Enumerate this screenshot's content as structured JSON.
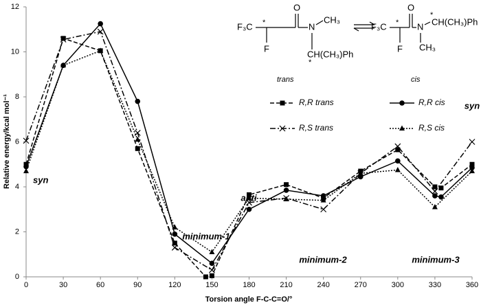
{
  "chart_data": {
    "type": "line",
    "x_label": "Torsion angle F-C-C=O/°",
    "y_label": "Relative energy/kcal mol⁻¹",
    "xlim": [
      0,
      360
    ],
    "xticks": [
      0,
      30,
      60,
      90,
      120,
      150,
      180,
      210,
      240,
      270,
      300,
      330,
      360
    ],
    "ylim": [
      0,
      12
    ],
    "yticks": [
      0,
      2,
      4,
      6,
      8,
      10,
      12
    ],
    "grid": false,
    "legend_position": "upper right",
    "series": [
      {
        "name": "R,R trans",
        "color": "#000000",
        "dash": "dashed",
        "marker": "square",
        "x": [
          0,
          30,
          60,
          90,
          120,
          145,
          150,
          180,
          210,
          240,
          270,
          300,
          330,
          335,
          360
        ],
        "values": [
          5.0,
          10.6,
          10.05,
          5.7,
          1.5,
          0.0,
          0.05,
          3.65,
          4.1,
          3.5,
          4.7,
          5.65,
          4.0,
          3.95,
          5.0
        ]
      },
      {
        "name": "R,R cis",
        "color": "#000000",
        "dash": "solid",
        "marker": "circle",
        "x": [
          0,
          30,
          60,
          90,
          120,
          150,
          180,
          210,
          240,
          270,
          300,
          330,
          335,
          360
        ],
        "values": [
          4.9,
          9.4,
          11.25,
          7.8,
          1.9,
          0.6,
          3.0,
          3.85,
          3.6,
          4.45,
          5.15,
          3.6,
          3.55,
          4.85
        ]
      },
      {
        "name": "R,S trans",
        "color": "#000000",
        "dash": "dashdot",
        "marker": "cross",
        "x": [
          0,
          30,
          60,
          90,
          120,
          150,
          180,
          210,
          240,
          270,
          300,
          330,
          360
        ],
        "values": [
          6.05,
          10.55,
          10.9,
          6.4,
          1.3,
          0.3,
          3.3,
          3.5,
          3.0,
          4.6,
          5.8,
          3.8,
          6.0
        ]
      },
      {
        "name": "R,S cis",
        "color": "#000000",
        "dash": "dotted",
        "marker": "triangle",
        "x": [
          0,
          30,
          60,
          90,
          120,
          150,
          180,
          210,
          240,
          270,
          300,
          330,
          360
        ],
        "values": [
          4.7,
          9.4,
          10.05,
          6.1,
          2.2,
          1.1,
          3.5,
          3.45,
          3.4,
          4.6,
          4.75,
          3.1,
          4.7
        ]
      }
    ],
    "annotations": [
      "syn",
      "minimum-1",
      "anti",
      "minimum-2",
      "minimum-3",
      "syn"
    ],
    "scheme": {
      "trans": {
        "cf3": "F₃C",
        "o": "O",
        "n": "N",
        "ch3": "CH₃",
        "f": "F",
        "star1": "*",
        "substituent": "CH(CH₃)Ph",
        "star2": "*",
        "label": "trans"
      },
      "cis": {
        "cf3": "F₃C",
        "o": "O",
        "n": "N",
        "ch3": "CH₃",
        "f": "F",
        "star1": "*",
        "substituent": "CH(CH₃)Ph",
        "star2": "*",
        "label": "cis"
      }
    }
  }
}
